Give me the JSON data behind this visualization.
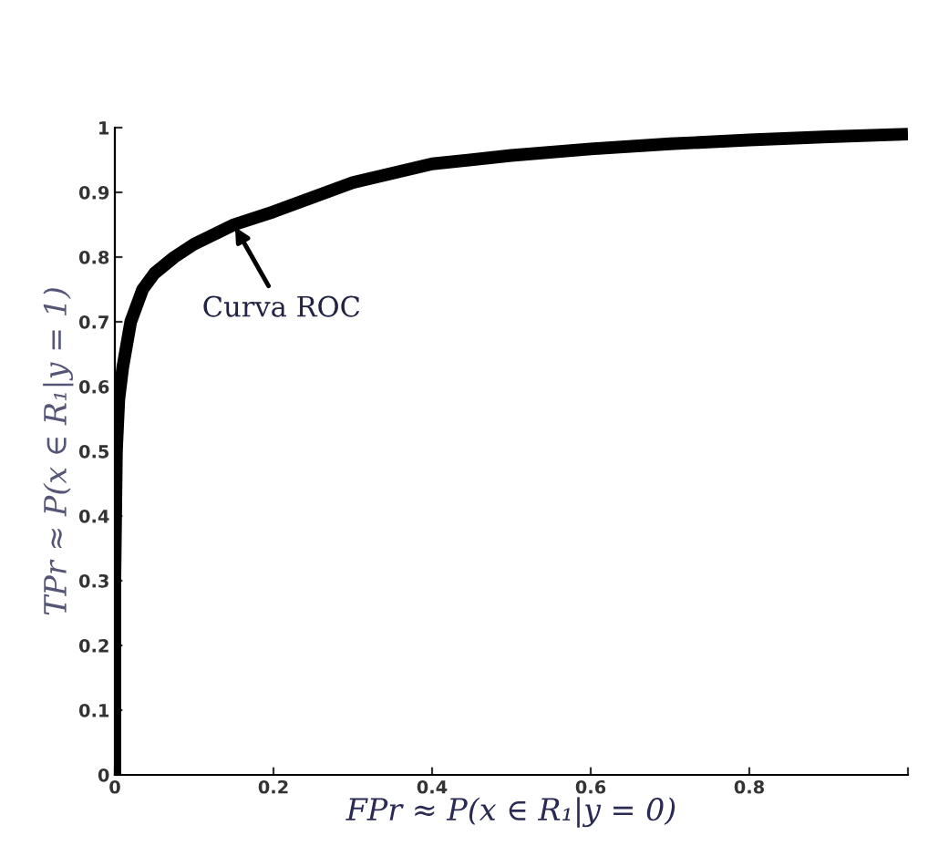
{
  "chart_data": {
    "type": "line",
    "xlabel": "FPr ≈ P(x ∈ R₁|y = 0)",
    "ylabel": "TPr ≈ P(x ∈ R₁|y = 1)",
    "x": [
      0,
      0,
      0.002,
      0.005,
      0.01,
      0.02,
      0.035,
      0.05,
      0.075,
      0.1,
      0.15,
      0.2,
      0.3,
      0.4,
      0.5,
      0.6,
      0.7,
      0.8,
      0.9,
      1
    ],
    "series": [
      {
        "color": "#000000",
        "values": [
          0,
          0.3,
          0.5,
          0.58,
          0.63,
          0.7,
          0.75,
          0.775,
          0.8,
          0.82,
          0.85,
          0.87,
          0.915,
          0.944,
          0.957,
          0.967,
          0.975,
          0.981,
          0.986,
          0.99
        ]
      }
    ],
    "annotations": [
      {
        "text": "Curva ROC",
        "x": 0.15,
        "y": 0.85
      }
    ],
    "xlim": [
      0,
      1
    ],
    "ylim": [
      0,
      1
    ],
    "xticks": [
      0,
      0.2,
      0.4,
      0.6,
      0.8,
      {
        "value": 1,
        "label": null
      }
    ],
    "yticks": [
      0,
      0.1,
      0.2,
      0.3,
      0.4,
      0.5,
      0.6,
      0.7,
      0.8,
      0.9,
      1
    ],
    "grid": false,
    "legend": false,
    "marker": "none",
    "line_style": "solid"
  }
}
